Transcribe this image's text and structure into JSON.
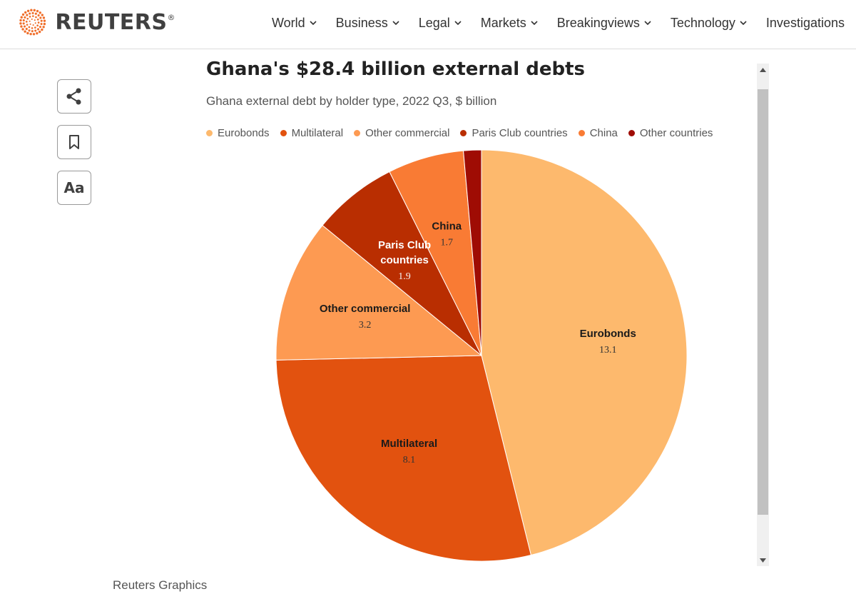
{
  "header": {
    "logo_text": "REUTERS",
    "logo_mark": "®",
    "nav": [
      {
        "label": "World",
        "has_dropdown": true
      },
      {
        "label": "Business",
        "has_dropdown": true
      },
      {
        "label": "Legal",
        "has_dropdown": true
      },
      {
        "label": "Markets",
        "has_dropdown": true
      },
      {
        "label": "Breakingviews",
        "has_dropdown": true
      },
      {
        "label": "Technology",
        "has_dropdown": true
      },
      {
        "label": "Investigations",
        "has_dropdown": false
      }
    ]
  },
  "toolbar": {
    "share_icon": "share-icon",
    "bookmark_icon": "bookmark-icon",
    "font_label": "Aa"
  },
  "credit": "Reuters Graphics",
  "chart_data": {
    "type": "pie",
    "title": "Ghana's $28.4 billion external debts",
    "subtitle": "Ghana external debt by holder type, 2022 Q3, $ billion",
    "legend_position": "top",
    "slices": [
      {
        "name": "Eurobonds",
        "value": 13.1,
        "color": "#fdb96d",
        "label": "Eurobonds",
        "value_label": "13.1"
      },
      {
        "name": "Multilateral",
        "value": 8.1,
        "color": "#e2520f",
        "label": "Multilateral",
        "value_label": "8.1"
      },
      {
        "name": "Other commercial",
        "value": 3.2,
        "color": "#fd9a52",
        "label": "Other commercial",
        "value_label": "3.2"
      },
      {
        "name": "Paris Club countries",
        "value": 1.9,
        "color": "#b92e01",
        "label": "Paris Club countries",
        "value_label": "1.9"
      },
      {
        "name": "China",
        "value": 1.7,
        "color": "#f97b34",
        "label": "China",
        "value_label": "1.7"
      },
      {
        "name": "Other countries",
        "value": 0.4,
        "color": "#9f0c04",
        "label": "",
        "value_label": ""
      }
    ]
  },
  "colors": {
    "logo_orange": "#f06f2b",
    "text_dark": "#222222"
  }
}
